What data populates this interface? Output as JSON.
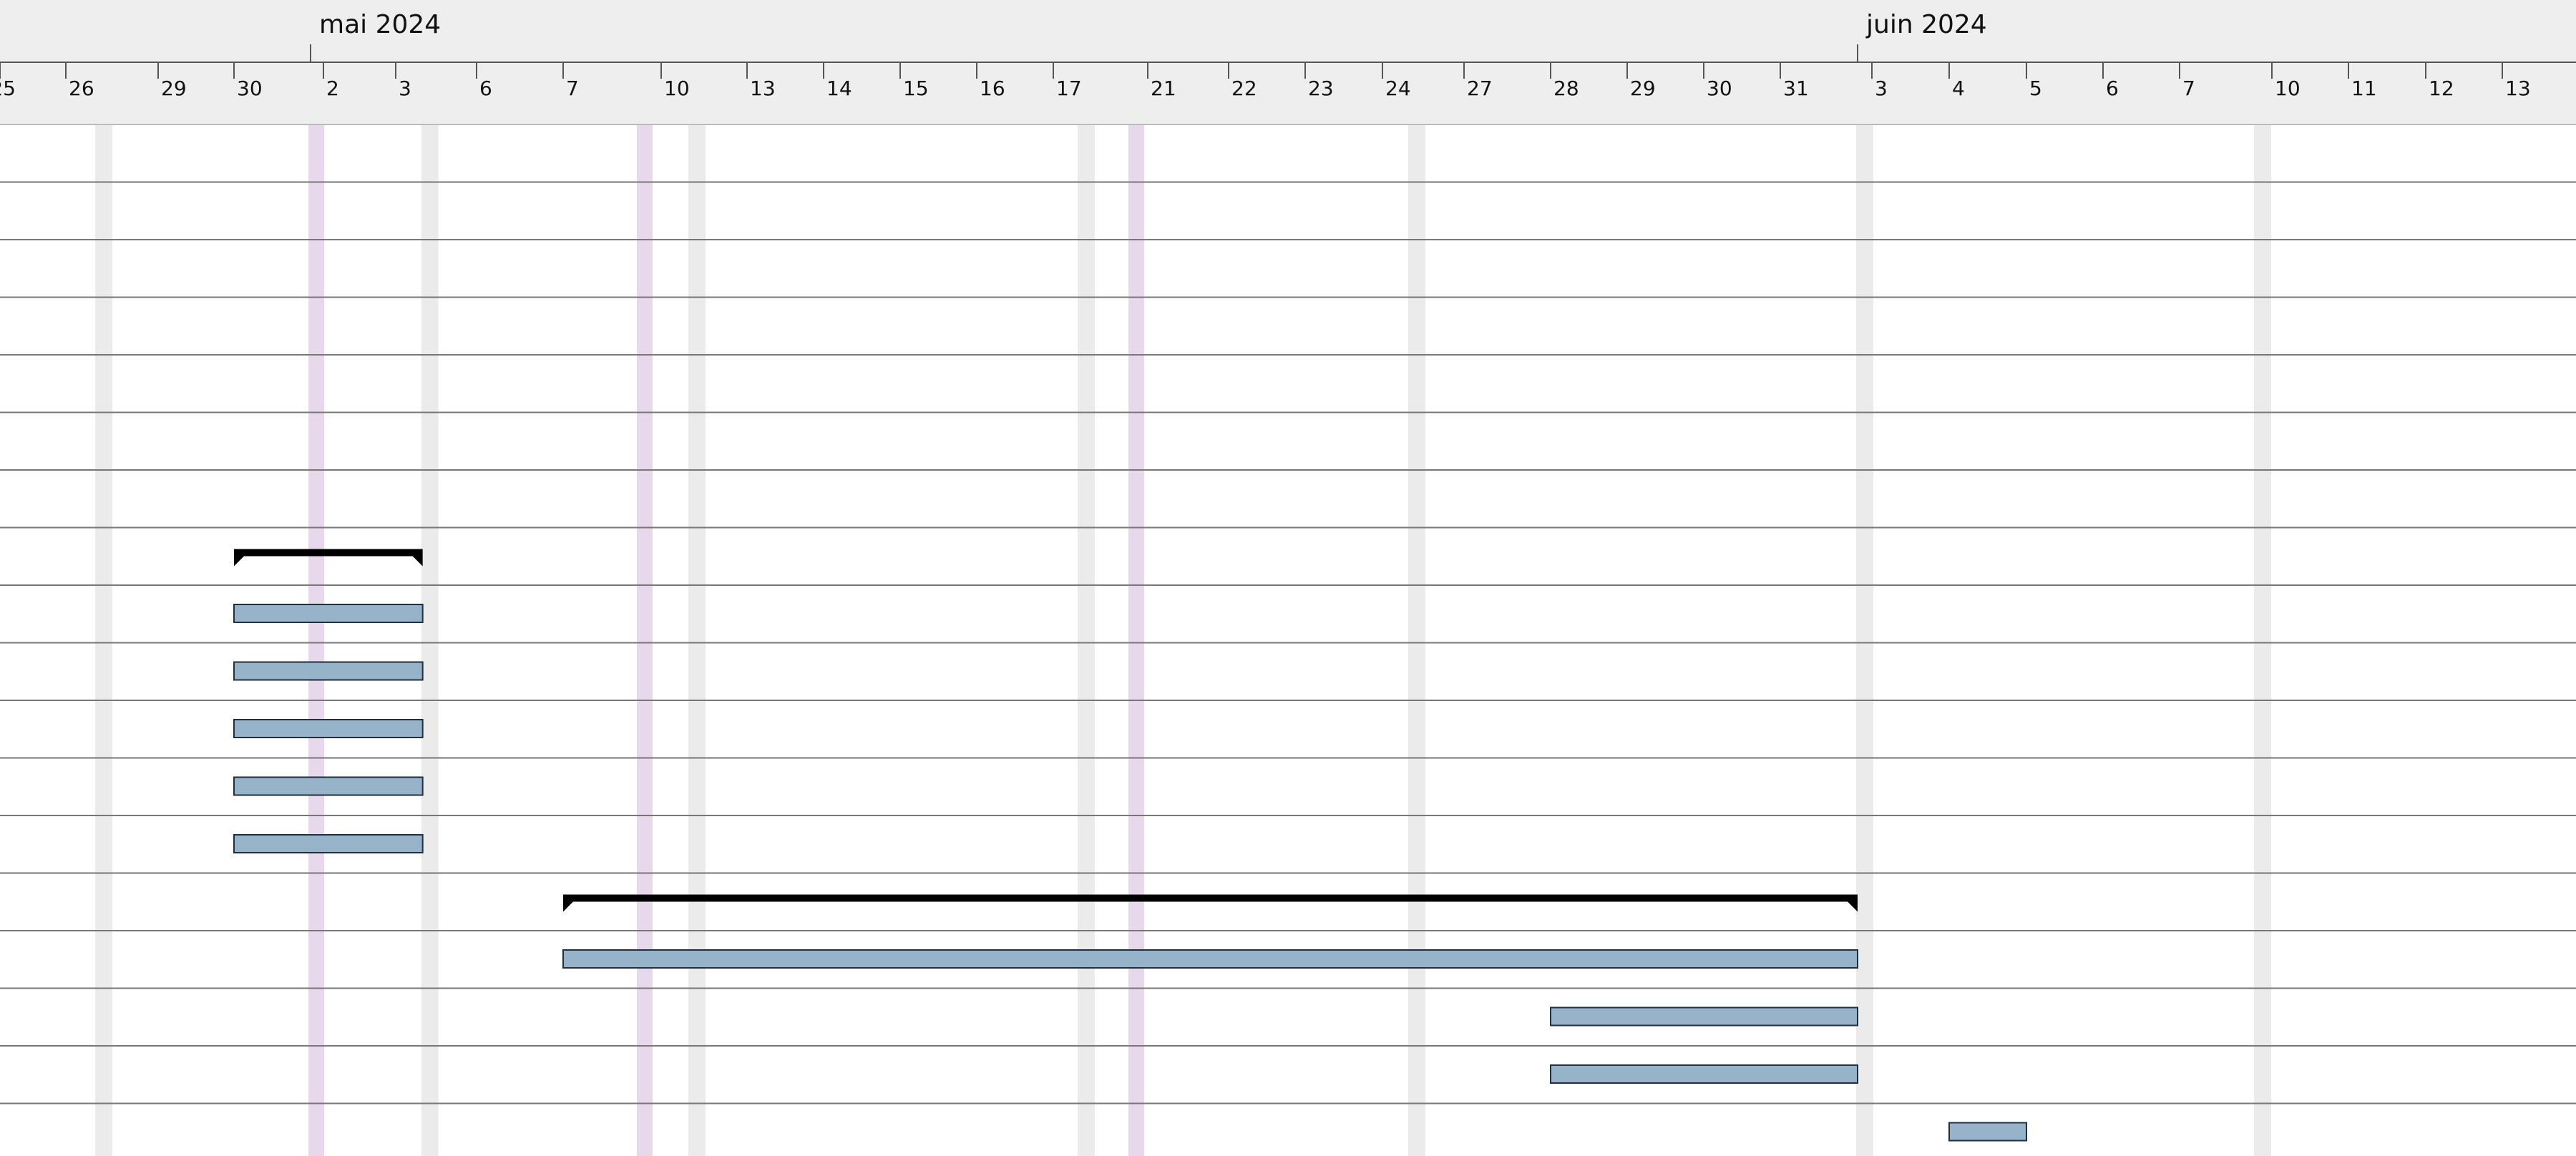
{
  "chart_data": {
    "type": "gantt",
    "timeline": {
      "months": [
        {
          "label": "mai 2024",
          "date": "2024-05-01"
        },
        {
          "label": "juin 2024",
          "date": "2024-06-01"
        }
      ],
      "day_ticks": [
        {
          "label": "25",
          "date": "2024-04-25"
        },
        {
          "label": "26",
          "date": "2024-04-26"
        },
        {
          "label": "29",
          "date": "2024-04-29"
        },
        {
          "label": "30",
          "date": "2024-04-30"
        },
        {
          "label": "2",
          "date": "2024-05-02"
        },
        {
          "label": "3",
          "date": "2024-05-03"
        },
        {
          "label": "6",
          "date": "2024-05-06"
        },
        {
          "label": "7",
          "date": "2024-05-07"
        },
        {
          "label": "10",
          "date": "2024-05-10"
        },
        {
          "label": "13",
          "date": "2024-05-13"
        },
        {
          "label": "14",
          "date": "2024-05-14"
        },
        {
          "label": "15",
          "date": "2024-05-15"
        },
        {
          "label": "16",
          "date": "2024-05-16"
        },
        {
          "label": "17",
          "date": "2024-05-17"
        },
        {
          "label": "21",
          "date": "2024-05-21"
        },
        {
          "label": "22",
          "date": "2024-05-22"
        },
        {
          "label": "23",
          "date": "2024-05-23"
        },
        {
          "label": "24",
          "date": "2024-05-24"
        },
        {
          "label": "27",
          "date": "2024-05-27"
        },
        {
          "label": "28",
          "date": "2024-05-28"
        },
        {
          "label": "29",
          "date": "2024-05-29"
        },
        {
          "label": "30",
          "date": "2024-05-30"
        },
        {
          "label": "31",
          "date": "2024-05-31"
        },
        {
          "label": "3",
          "date": "2024-06-03"
        },
        {
          "label": "4",
          "date": "2024-06-04"
        },
        {
          "label": "5",
          "date": "2024-06-05"
        },
        {
          "label": "6",
          "date": "2024-06-06"
        },
        {
          "label": "7",
          "date": "2024-06-07"
        },
        {
          "label": "10",
          "date": "2024-06-10"
        },
        {
          "label": "11",
          "date": "2024-06-11"
        },
        {
          "label": "12",
          "date": "2024-06-12"
        },
        {
          "label": "13",
          "date": "2024-06-13"
        }
      ],
      "week_boundaries": [
        "2024-04-27",
        "2024-05-04",
        "2024-05-11",
        "2024-05-18",
        "2024-05-25",
        "2024-06-01",
        "2024-06-08"
      ],
      "holidays": [
        "2024-05-01",
        "2024-05-08",
        "2024-05-20"
      ]
    },
    "row_count": 18,
    "rows": [
      {
        "row": 7,
        "kind": "summary",
        "start": "2024-04-30",
        "end": "2024-05-03"
      },
      {
        "row": 8,
        "kind": "task",
        "start": "2024-04-30",
        "end": "2024-05-03"
      },
      {
        "row": 9,
        "kind": "task",
        "start": "2024-04-30",
        "end": "2024-05-03"
      },
      {
        "row": 10,
        "kind": "task",
        "start": "2024-04-30",
        "end": "2024-05-03"
      },
      {
        "row": 11,
        "kind": "task",
        "start": "2024-04-30",
        "end": "2024-05-03"
      },
      {
        "row": 12,
        "kind": "task",
        "start": "2024-04-30",
        "end": "2024-05-03"
      },
      {
        "row": 13,
        "kind": "summary",
        "start": "2024-05-07",
        "end": "2024-05-31"
      },
      {
        "row": 14,
        "kind": "task",
        "start": "2024-05-07",
        "end": "2024-05-31"
      },
      {
        "row": 15,
        "kind": "task",
        "start": "2024-05-28",
        "end": "2024-05-31"
      },
      {
        "row": 16,
        "kind": "task",
        "start": "2024-05-28",
        "end": "2024-05-31"
      },
      {
        "row": 17,
        "kind": "task",
        "start": "2024-06-04",
        "end": "2024-06-04"
      }
    ],
    "colors": {
      "header_bg": "#eeeeee",
      "grid_line": "#777777",
      "weekend_band": "#ebebeb",
      "holiday_band": "#e8d8ec",
      "task_fill": "#97b3c9",
      "task_stroke": "#1f2f3d",
      "summary_fill": "#000000"
    }
  }
}
